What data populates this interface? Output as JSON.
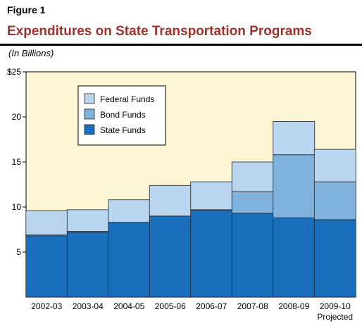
{
  "figure_label": "Figure 1",
  "chart_data": {
    "type": "bar",
    "stacked": true,
    "title": "Expenditures on State Transportation Programs",
    "subtitle": "(In Billions)",
    "categories": [
      "2002-03",
      "2003-04",
      "2004-05",
      "2005-06",
      "2006-07",
      "2007-08",
      "2008-09",
      "2009-10"
    ],
    "category_sublabels": [
      "",
      "",
      "",
      "",
      "",
      "",
      "",
      "Projected"
    ],
    "series": [
      {
        "name": "State Funds",
        "color": "#1a6fbd",
        "values": [
          6.8,
          7.2,
          8.3,
          9.0,
          9.6,
          9.3,
          8.8,
          8.6
        ]
      },
      {
        "name": "Bond Funds",
        "color": "#7fb2dd",
        "values": [
          0.1,
          0.1,
          0.0,
          0.0,
          0.1,
          2.4,
          7.0,
          4.2
        ]
      },
      {
        "name": "Federal Funds",
        "color": "#b9d5ef",
        "values": [
          2.7,
          2.4,
          2.5,
          3.4,
          3.1,
          3.3,
          3.7,
          3.6
        ]
      }
    ],
    "legend_order": [
      "Federal Funds",
      "Bond Funds",
      "State Funds"
    ],
    "legend_position": "top-left",
    "y_ticks": [
      "5",
      "10",
      "15",
      "20",
      "$25"
    ],
    "ylim": [
      0,
      25
    ],
    "grid": false,
    "plot_background": "#fdf5d3"
  }
}
